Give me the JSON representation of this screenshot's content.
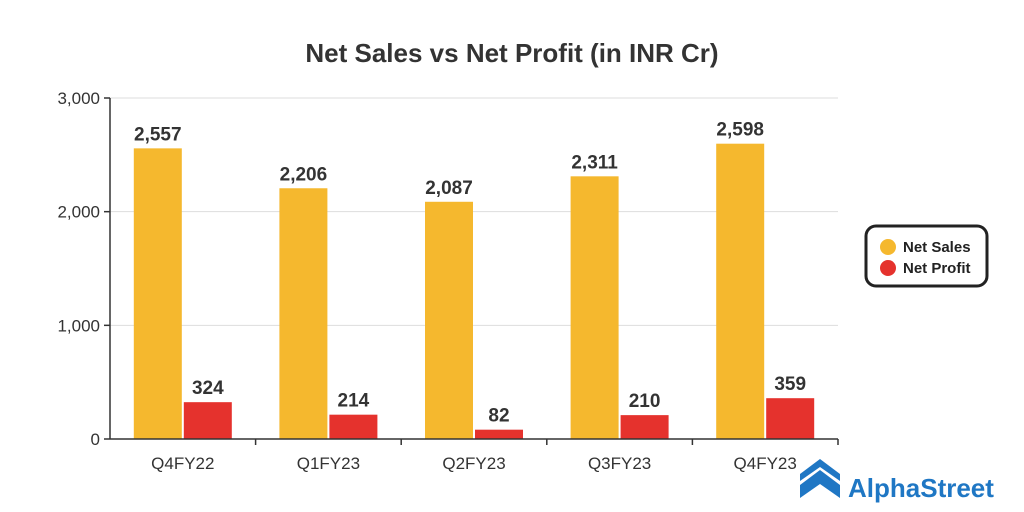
{
  "brand": {
    "name": "AlphaStreet",
    "color": "#1f77c4"
  },
  "chart_data": {
    "type": "bar",
    "title": "Net Sales vs Net Profit (in INR Cr)",
    "xlabel": "",
    "ylabel": "",
    "categories": [
      "Q4FY22",
      "Q1FY23",
      "Q2FY23",
      "Q3FY23",
      "Q4FY23"
    ],
    "series": [
      {
        "name": "Net Sales",
        "color": "#f5b82e",
        "values": [
          2557,
          2206,
          2087,
          2311,
          2598
        ],
        "labels": [
          "2,557",
          "2,206",
          "2,087",
          "2,311",
          "2,598"
        ]
      },
      {
        "name": "Net Profit",
        "color": "#e5322d",
        "values": [
          324,
          214,
          82,
          210,
          359
        ],
        "labels": [
          "324",
          "214",
          "82",
          "210",
          "359"
        ]
      }
    ],
    "ylim": [
      0,
      3000
    ],
    "yticks": [
      0,
      1000,
      2000,
      3000
    ],
    "ytick_labels": [
      "0",
      "1,000",
      "2,000",
      "3,000"
    ],
    "grid": true,
    "legend_position": "right"
  }
}
